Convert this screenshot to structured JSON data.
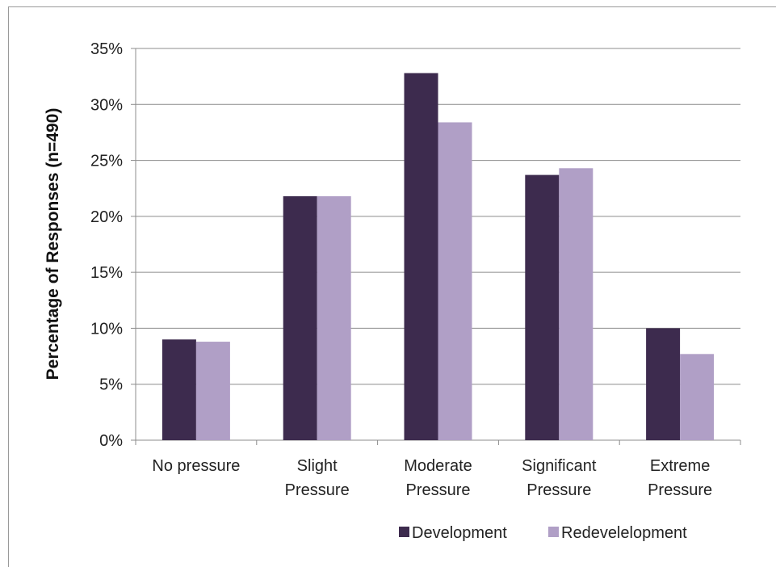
{
  "chart_data": {
    "type": "bar",
    "title": "",
    "xlabel": "",
    "ylabel": "Percentage of Responses (n=490)",
    "ylim": [
      0,
      35
    ],
    "y_ticks": [
      "0%",
      "5%",
      "10%",
      "15%",
      "20%",
      "25%",
      "30%",
      "35%"
    ],
    "categories": [
      [
        "No pressure"
      ],
      [
        "Slight",
        "Pressure"
      ],
      [
        "Moderate",
        "Pressure"
      ],
      [
        "Significant",
        "Pressure"
      ],
      [
        "Extreme",
        "Pressure"
      ]
    ],
    "series": [
      {
        "name": "Development",
        "color": "#3d2b4e",
        "values": [
          9.0,
          21.8,
          32.8,
          23.7,
          10.0
        ]
      },
      {
        "name": "Redevelelopment",
        "color": "#b09fc6",
        "values": [
          8.8,
          21.8,
          28.4,
          24.3,
          7.7
        ]
      }
    ],
    "grid": true,
    "legend_position": "bottom-right"
  }
}
